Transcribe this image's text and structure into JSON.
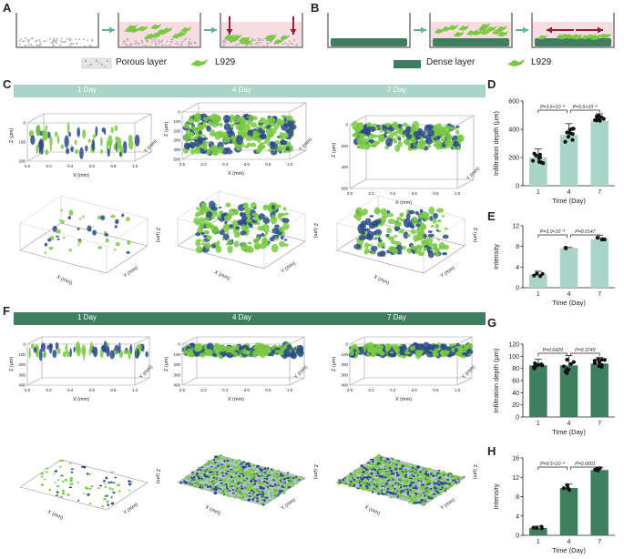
{
  "panels": {
    "A": "A",
    "B": "B",
    "C": "C",
    "D": "D",
    "E": "E",
    "F": "F",
    "G": "G",
    "H": "H"
  },
  "legend_a": {
    "porous": "Porous layer",
    "cell": "L929"
  },
  "legend_b": {
    "dense": "Dense layer",
    "cell": "L929"
  },
  "days": [
    "1 Day",
    "4 Day",
    "7 Day"
  ],
  "colors": {
    "light": "#a8d5c8",
    "dark": "#3f7f5f",
    "cell": "#7ac943",
    "blue": "#2c4a8a"
  },
  "axes3d": {
    "x": "X (mm)",
    "y": "Y (mm)",
    "z": "Z (μm)"
  },
  "charts": [
    {
      "id": "D",
      "type": "bar",
      "color": "#a8d5c8",
      "categories": [
        "1",
        "4",
        "7"
      ],
      "values": [
        200,
        360,
        460
      ],
      "errors": [
        60,
        80,
        50
      ],
      "ylim": [
        0,
        600
      ],
      "yticks": [
        "0",
        "200",
        "400",
        "600"
      ],
      "ylabel": "Infiltration depth (μm)",
      "xlabel": "Time (Day)",
      "pvals": [
        "P=3.6×10⁻⁶",
        "P=5.6×10⁻⁵"
      ]
    },
    {
      "id": "E",
      "type": "bar",
      "color": "#a8d5c8",
      "categories": [
        "1",
        "4",
        "7"
      ],
      "values": [
        2.6,
        7.7,
        9.4
      ],
      "errors": [
        0.6,
        0.1,
        0.8
      ],
      "ylim": [
        0,
        12
      ],
      "yticks": [
        "0",
        "4",
        "8",
        "12"
      ],
      "ylabel": "Intensity",
      "xlabel": "Time (Day)",
      "pvals": [
        "P=3.9×10⁻⁴",
        "P=0.0147"
      ]
    },
    {
      "id": "G",
      "type": "bar",
      "color": "#3f7f5f",
      "categories": [
        "1",
        "4",
        "7"
      ],
      "values": [
        85,
        85,
        88
      ],
      "errors": [
        10,
        16,
        10
      ],
      "ylim": [
        0,
        120
      ],
      "yticks": [
        "0",
        "20",
        "40",
        "60",
        "80",
        "100",
        "120"
      ],
      "ylabel": "Infiltration depth (μm)",
      "xlabel": "Time (Day)",
      "pvals": [
        "P=0.6429",
        "P=0.3749"
      ]
    },
    {
      "id": "H",
      "type": "bar",
      "color": "#3f7f5f",
      "categories": [
        "1",
        "4",
        "7"
      ],
      "values": [
        1.5,
        9.8,
        13.5
      ],
      "errors": [
        0.4,
        0.8,
        0.6
      ],
      "ylim": [
        0,
        16
      ],
      "yticks": [
        "0",
        "4",
        "8",
        "12",
        "16"
      ],
      "ylabel": "Intensity",
      "xlabel": "Time (Day)",
      "pvals": [
        "P=9.5×10⁻⁶",
        "P=0.0001"
      ]
    }
  ],
  "chart_data": [
    {
      "type": "bar",
      "categories": [
        "1",
        "4",
        "7"
      ],
      "values": [
        200,
        360,
        460
      ],
      "xlabel": "Time (Day)",
      "ylabel": "Infiltration depth (μm)",
      "ylim": [
        0,
        600
      ]
    },
    {
      "type": "bar",
      "categories": [
        "1",
        "4",
        "7"
      ],
      "values": [
        2.6,
        7.7,
        9.4
      ],
      "xlabel": "Time (Day)",
      "ylabel": "Intensity",
      "ylim": [
        0,
        12
      ]
    },
    {
      "type": "bar",
      "categories": [
        "1",
        "4",
        "7"
      ],
      "values": [
        85,
        85,
        88
      ],
      "xlabel": "Time (Day)",
      "ylabel": "Infiltration depth (μm)",
      "ylim": [
        0,
        120
      ]
    },
    {
      "type": "bar",
      "categories": [
        "1",
        "4",
        "7"
      ],
      "values": [
        1.5,
        9.8,
        13.5
      ],
      "xlabel": "Time (Day)",
      "ylabel": "Intensity",
      "ylim": [
        0,
        16
      ]
    }
  ]
}
